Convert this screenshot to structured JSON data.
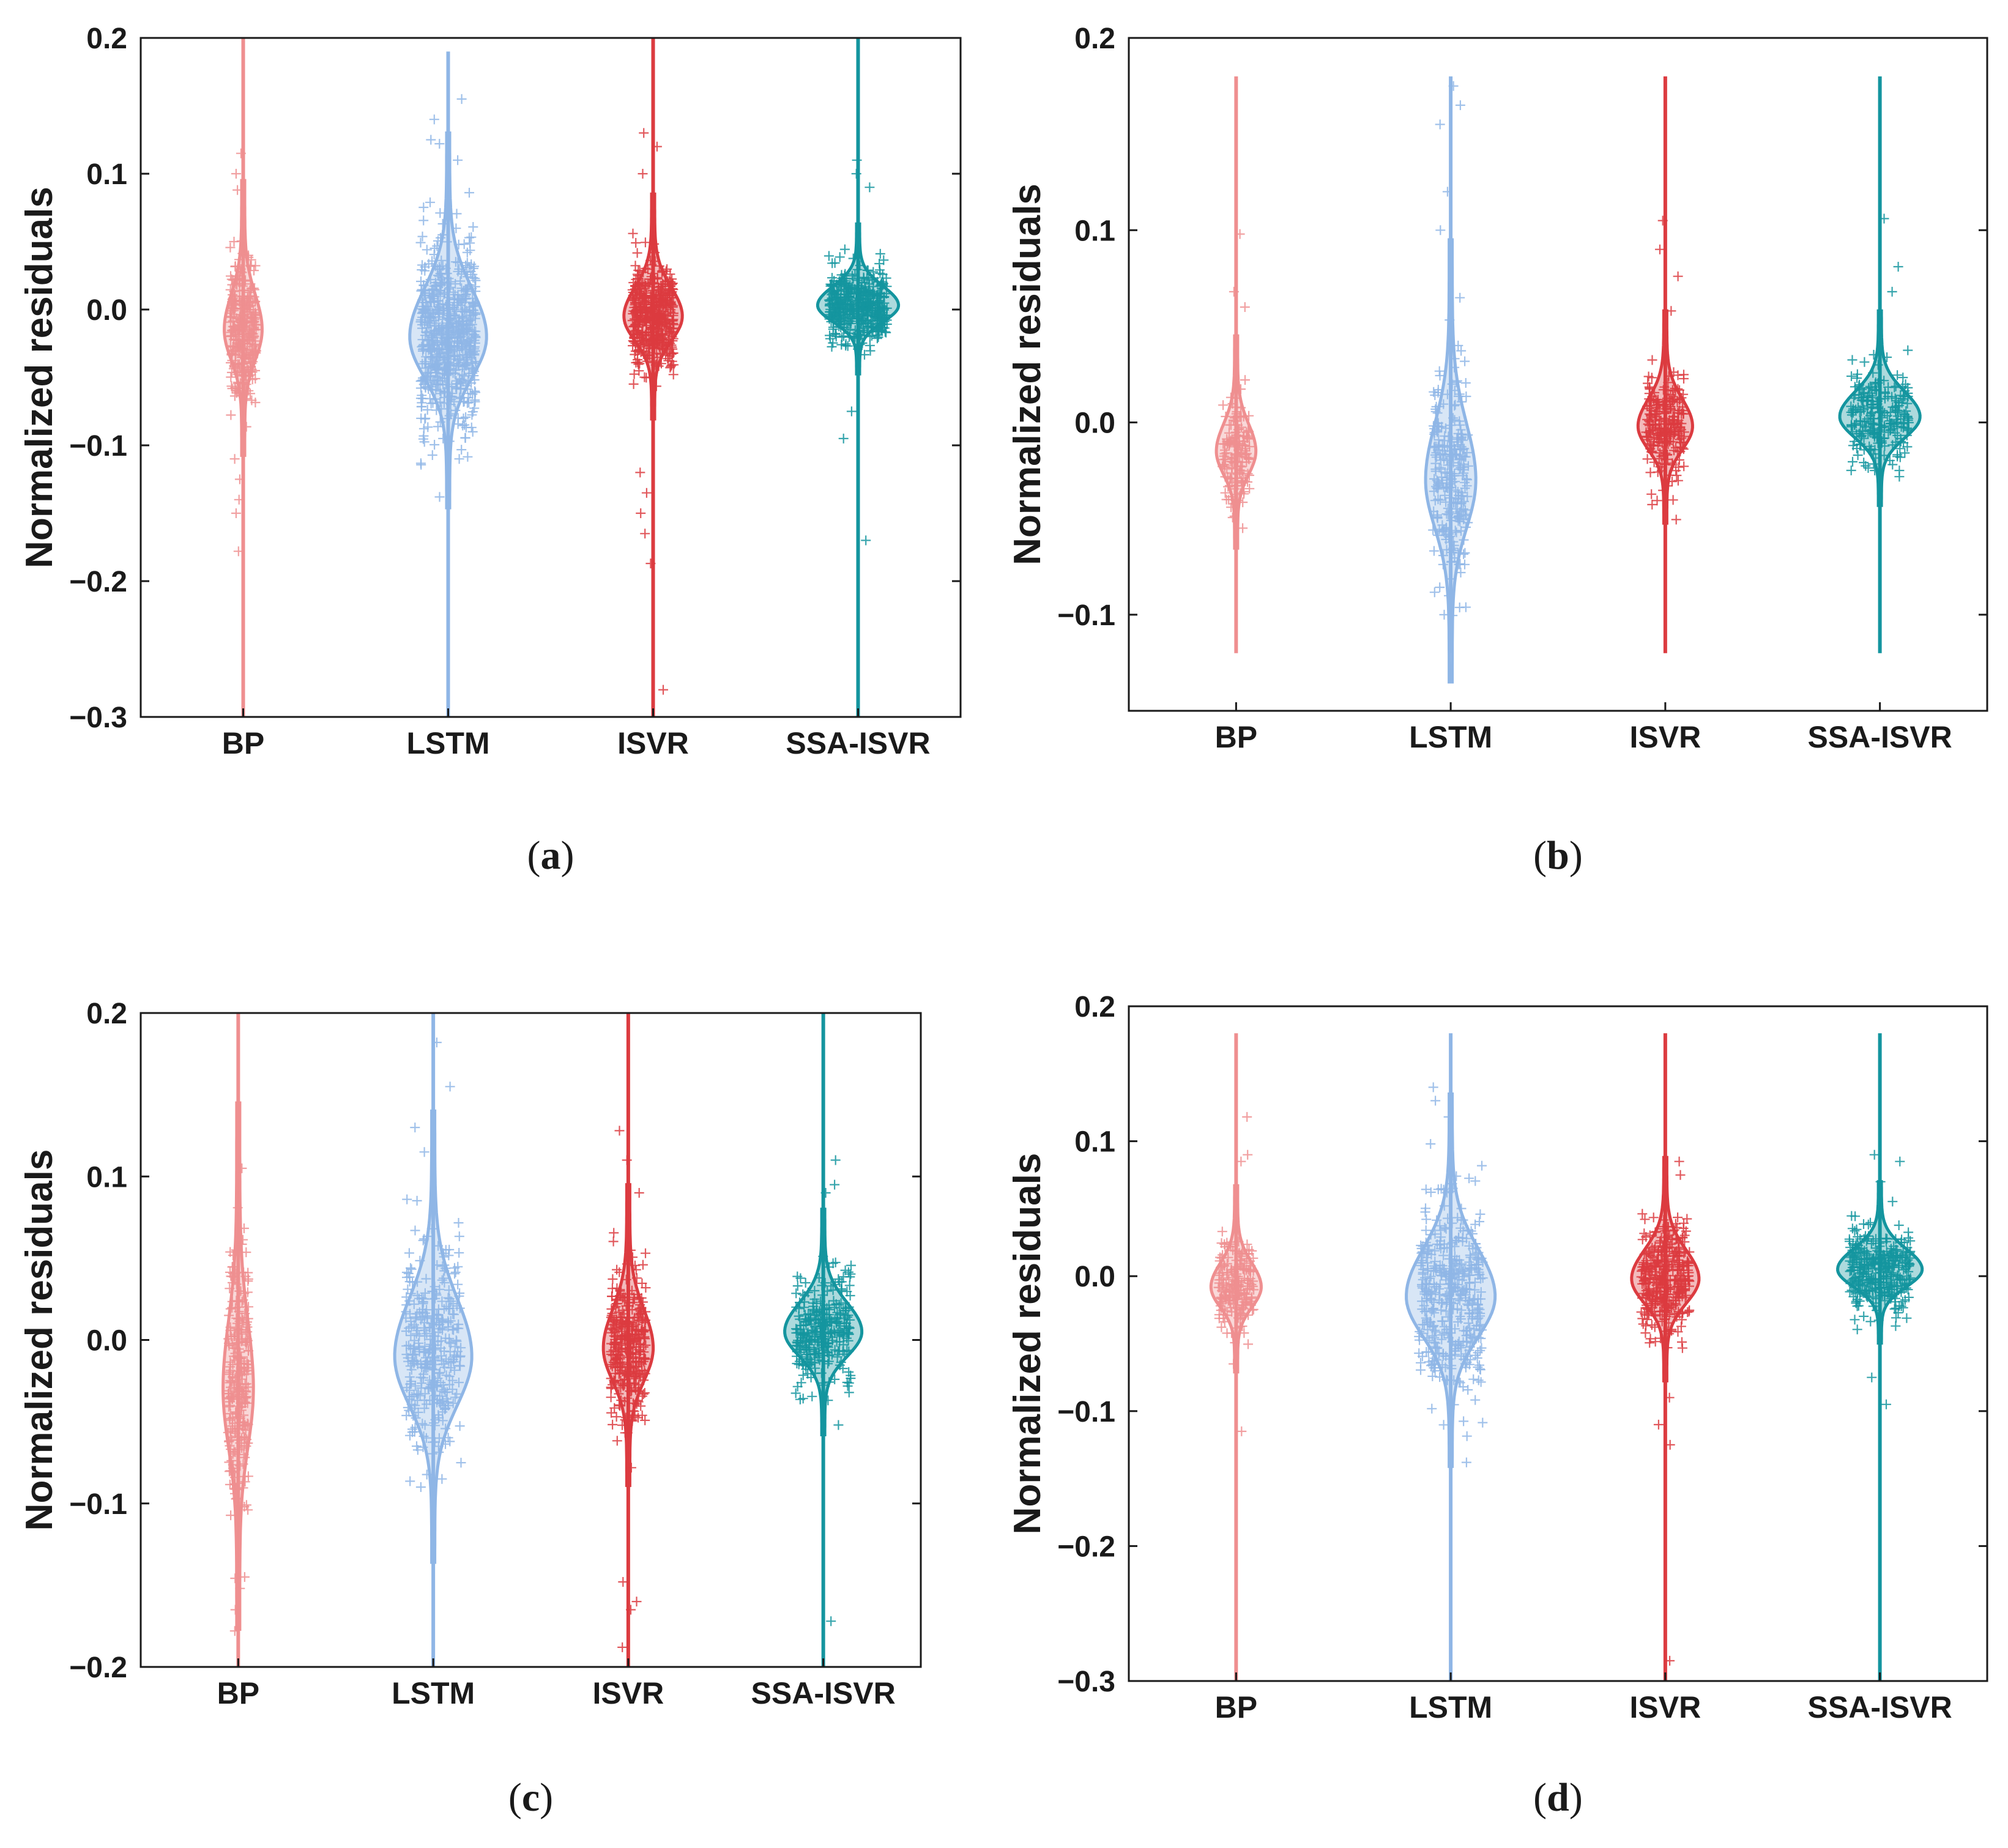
{
  "figure": {
    "colors": {
      "BP": "#ef8f90",
      "LSTM": "#8fb6e6",
      "ISVR": "#dc3b40",
      "SSA-ISVR": "#14959f",
      "axis": "#1a1a1a"
    }
  },
  "chart_data": [
    {
      "type": "violin",
      "caption": "(a)",
      "caption_paren_open": "(",
      "caption_letter": "a",
      "caption_paren_close": ")",
      "ylabel": "Normalized residuals",
      "ylim": [
        -0.3,
        0.2
      ],
      "yticks": [
        -0.3,
        -0.2,
        -0.1,
        0.0,
        0.1,
        0.2
      ],
      "ytick_labels": [
        "−0.3",
        "−0.2",
        "−0.1",
        "0.0",
        "0.1",
        "0.2"
      ],
      "categories": [
        "BP",
        "LSTM",
        "ISVR",
        "SSA-ISVR"
      ],
      "series": [
        {
          "name": "BP",
          "median": -0.015,
          "spread": 0.022,
          "half_width": 0.085,
          "whisker": [
            -0.3,
            0.2
          ],
          "n_points": 320,
          "outliers": [
            0.115,
            0.1,
            0.088,
            -0.11,
            -0.125,
            -0.14,
            -0.15,
            -0.178
          ]
        },
        {
          "name": "LSTM",
          "median": -0.02,
          "spread": 0.03,
          "half_width": 0.18,
          "whisker": [
            -0.3,
            0.19
          ],
          "n_points": 650,
          "outliers": [
            0.155,
            0.14,
            0.125,
            0.11,
            -0.095,
            -0.11,
            -0.138
          ]
        },
        {
          "name": "ISVR",
          "median": -0.005,
          "spread": 0.018,
          "half_width": 0.135,
          "whisker": [
            -0.3,
            0.2
          ],
          "n_points": 480,
          "outliers": [
            0.13,
            0.12,
            0.1,
            -0.12,
            -0.135,
            -0.15,
            -0.165,
            -0.187,
            -0.28
          ]
        },
        {
          "name": "SSA-ISVR",
          "median": 0.003,
          "spread": 0.012,
          "half_width": 0.19,
          "whisker": [
            -0.3,
            0.2
          ],
          "n_points": 450,
          "outliers": [
            0.11,
            0.1,
            0.09,
            -0.075,
            -0.095,
            -0.17
          ]
        }
      ]
    },
    {
      "type": "violin",
      "caption": "(b)",
      "caption_paren_open": "(",
      "caption_letter": "b",
      "caption_paren_close": ")",
      "ylabel": "Normalized residuals",
      "ylim": [
        -0.15,
        0.2
      ],
      "yticks": [
        -0.1,
        0.0,
        0.1,
        0.2
      ],
      "ytick_labels": [
        "−0.1",
        "0.0",
        "0.1",
        "0.2"
      ],
      "categories": [
        "BP",
        "LSTM",
        "ISVR",
        "SSA-ISVR"
      ],
      "series": [
        {
          "name": "BP",
          "median": -0.015,
          "spread": 0.012,
          "half_width": 0.085,
          "whisker": [
            -0.12,
            0.18
          ],
          "n_points": 150,
          "outliers": [
            0.098,
            0.068,
            0.06,
            -0.055
          ]
        },
        {
          "name": "LSTM",
          "median": -0.03,
          "spread": 0.025,
          "half_width": 0.11,
          "whisker": [
            -0.12,
            0.18
          ],
          "n_points": 260,
          "outliers": [
            0.175,
            0.165,
            0.155,
            0.12,
            0.1,
            -0.1
          ]
        },
        {
          "name": "ISVR",
          "median": -0.002,
          "spread": 0.012,
          "half_width": 0.12,
          "whisker": [
            -0.12,
            0.18
          ],
          "n_points": 230,
          "outliers": [
            0.105,
            0.09,
            0.076,
            0.058,
            -0.033
          ]
        },
        {
          "name": "SSA-ISVR",
          "median": 0.003,
          "spread": 0.011,
          "half_width": 0.18,
          "whisker": [
            -0.12,
            0.18
          ],
          "n_points": 230,
          "outliers": [
            0.106,
            0.081,
            0.068,
            -0.025
          ]
        }
      ]
    },
    {
      "type": "violin",
      "caption": "(c)",
      "caption_paren_open": "(",
      "caption_letter": "c",
      "caption_paren_close": ")",
      "ylabel": "Normalized residuals",
      "ylim": [
        -0.2,
        0.2
      ],
      "yticks": [
        -0.2,
        -0.1,
        0.0,
        0.1,
        0.2
      ],
      "ytick_labels": [
        "−0.2",
        "−0.1",
        "0.0",
        "0.1",
        "0.2"
      ],
      "categories": [
        "BP",
        "LSTM",
        "ISVR",
        "SSA-ISVR"
      ],
      "series": [
        {
          "name": "BP",
          "median": -0.03,
          "spread": 0.035,
          "half_width": 0.07,
          "whisker": [
            -0.2,
            0.2
          ],
          "n_points": 260,
          "outliers": [
            0.105,
            0.055,
            -0.145,
            -0.152,
            -0.165,
            -0.178
          ]
        },
        {
          "name": "LSTM",
          "median": -0.01,
          "spread": 0.03,
          "half_width": 0.19,
          "whisker": [
            -0.2,
            0.2
          ],
          "n_points": 340,
          "outliers": [
            0.182,
            0.155,
            0.13,
            0.115,
            -0.085,
            -0.09
          ]
        },
        {
          "name": "ISVR",
          "median": -0.005,
          "spread": 0.02,
          "half_width": 0.12,
          "whisker": [
            -0.2,
            0.2
          ],
          "n_points": 330,
          "outliers": [
            0.128,
            0.11,
            0.09,
            -0.148,
            -0.16,
            -0.165,
            -0.188
          ]
        },
        {
          "name": "SSA-ISVR",
          "median": 0.005,
          "spread": 0.015,
          "half_width": 0.19,
          "whisker": [
            -0.2,
            0.2
          ],
          "n_points": 300,
          "outliers": [
            0.11,
            0.095,
            0.09,
            -0.052,
            -0.172
          ]
        }
      ]
    },
    {
      "type": "violin",
      "caption": "(d)",
      "caption_paren_open": "(",
      "caption_letter": "d",
      "caption_paren_close": ")",
      "ylabel": "Normalized residuals",
      "ylim": [
        -0.3,
        0.2
      ],
      "yticks": [
        -0.3,
        -0.2,
        -0.1,
        0.0,
        0.1,
        0.2
      ],
      "ytick_labels": [
        "−0.3",
        "−0.2",
        "−0.1",
        "0.0",
        "0.1",
        "0.2"
      ],
      "categories": [
        "BP",
        "LSTM",
        "ISVR",
        "SSA-ISVR"
      ],
      "series": [
        {
          "name": "BP",
          "median": -0.008,
          "spread": 0.015,
          "half_width": 0.11,
          "whisker": [
            -0.3,
            0.18
          ],
          "n_points": 200,
          "outliers": [
            0.118,
            0.09,
            0.085,
            -0.065,
            -0.115
          ]
        },
        {
          "name": "LSTM",
          "median": -0.015,
          "spread": 0.03,
          "half_width": 0.2,
          "whisker": [
            -0.3,
            0.18
          ],
          "n_points": 420,
          "outliers": [
            0.14,
            0.13,
            0.118,
            0.098,
            -0.138
          ]
        },
        {
          "name": "ISVR",
          "median": -0.002,
          "spread": 0.018,
          "half_width": 0.15,
          "whisker": [
            -0.3,
            0.18
          ],
          "n_points": 350,
          "outliers": [
            0.085,
            0.075,
            -0.09,
            -0.11,
            -0.125,
            -0.285
          ]
        },
        {
          "name": "SSA-ISVR",
          "median": 0.005,
          "spread": 0.013,
          "half_width": 0.19,
          "whisker": [
            -0.3,
            0.18
          ],
          "n_points": 330,
          "outliers": [
            0.09,
            0.085,
            0.07,
            -0.075,
            -0.095
          ]
        }
      ]
    }
  ]
}
